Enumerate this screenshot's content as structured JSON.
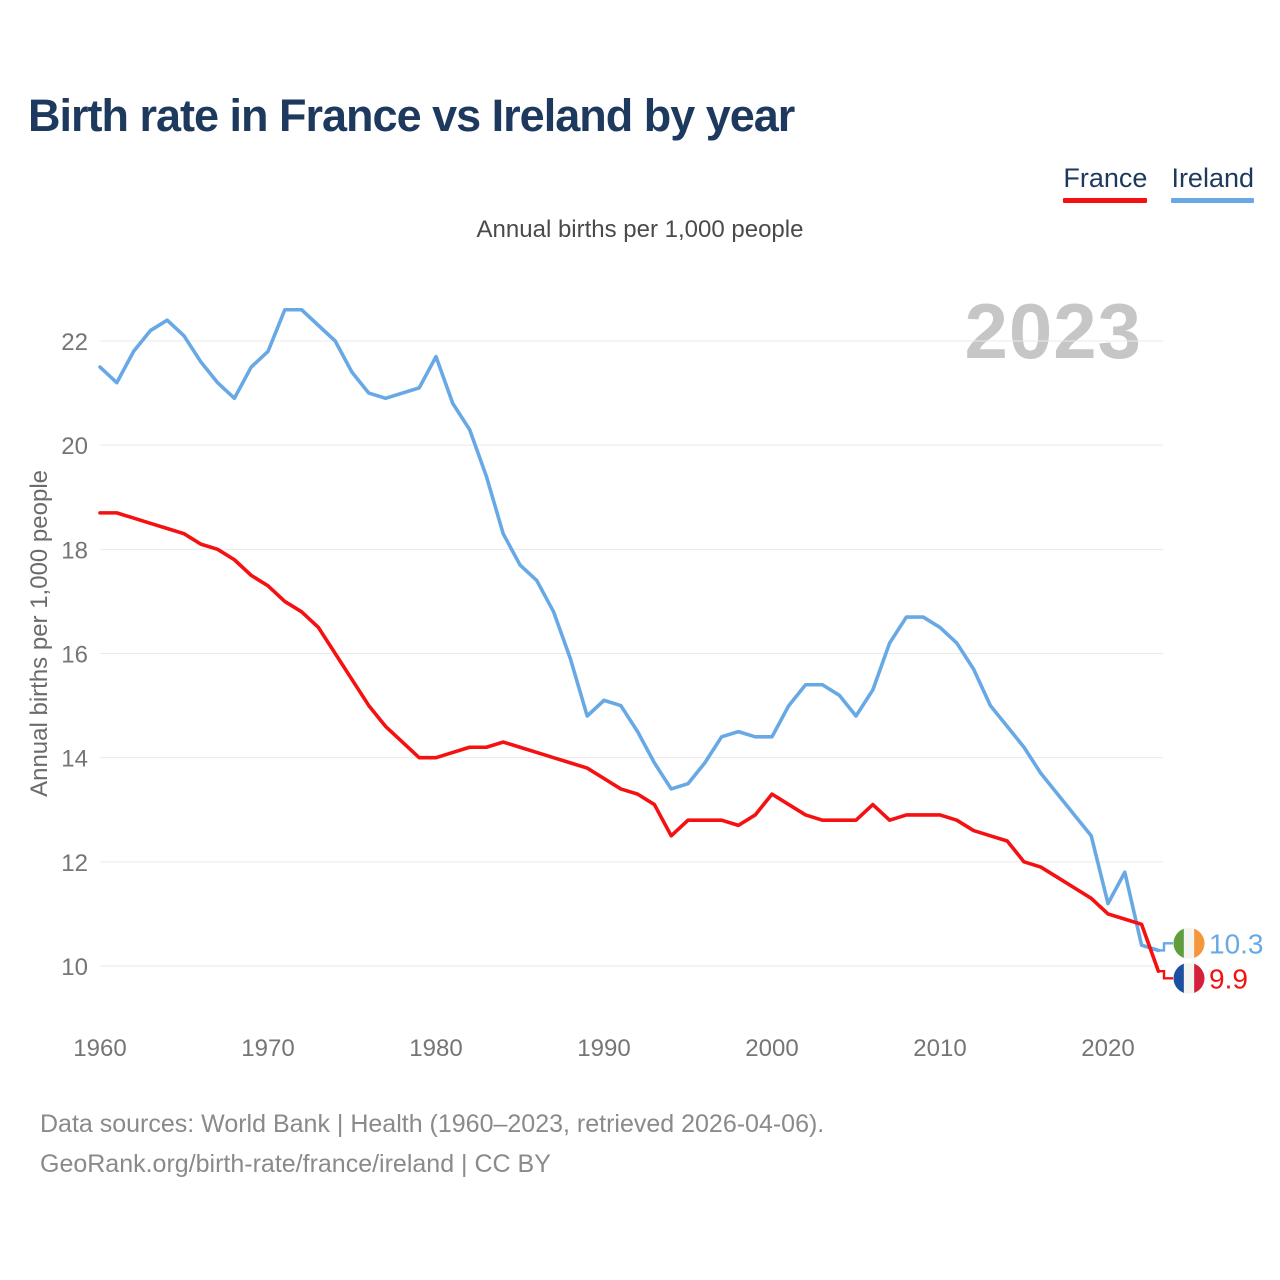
{
  "header": {
    "title": "Birth rate in France vs Ireland by year",
    "subtitle": "Annual births per 1,000 people"
  },
  "watermark": "2023",
  "y_axis_title": "Annual births per 1,000 people",
  "legend": {
    "position": "top-right",
    "items": [
      {
        "label": "France",
        "color": "#f51111"
      },
      {
        "label": "Ireland",
        "color": "#68a9e5"
      }
    ]
  },
  "footer": {
    "line1": "Data sources: World Bank | Health (1960–2023, retrieved 2026-04-06).",
    "line2": "GeoRank.org/birth-rate/france/ireland | CC BY"
  },
  "chart_data": {
    "type": "line",
    "title": "Birth rate in France vs Ireland by year",
    "ylabel": "Annual births per 1,000 people",
    "grid": "horizontal-only",
    "ylim": [
      9.5,
      23.2
    ],
    "y_ticks": [
      22,
      20,
      18,
      16,
      14,
      12,
      10
    ],
    "x_ticks": [
      1960,
      1970,
      1980,
      1990,
      2000,
      2010,
      2020
    ],
    "x": [
      1960,
      1961,
      1962,
      1963,
      1964,
      1965,
      1966,
      1967,
      1968,
      1969,
      1970,
      1971,
      1972,
      1973,
      1974,
      1975,
      1976,
      1977,
      1978,
      1979,
      1980,
      1981,
      1982,
      1983,
      1984,
      1985,
      1986,
      1987,
      1988,
      1989,
      1990,
      1991,
      1992,
      1993,
      1994,
      1995,
      1996,
      1997,
      1998,
      1999,
      2000,
      2001,
      2002,
      2003,
      2004,
      2005,
      2006,
      2007,
      2008,
      2009,
      2010,
      2011,
      2012,
      2013,
      2014,
      2015,
      2016,
      2017,
      2018,
      2019,
      2020,
      2021,
      2022,
      2023
    ],
    "series": [
      {
        "name": "France",
        "color": "#f51111",
        "end_label": "9.9",
        "flag_icon": "france-flag-icon",
        "flag_colors": [
          "#1d4fa1",
          "#f4f4f1",
          "#d5203b"
        ],
        "values": [
          18.7,
          18.7,
          18.6,
          18.5,
          18.4,
          18.3,
          18.1,
          18.0,
          17.8,
          17.5,
          17.3,
          17.0,
          16.8,
          16.5,
          16.0,
          15.5,
          15.0,
          14.6,
          14.3,
          14.0,
          14.0,
          14.1,
          14.2,
          14.2,
          14.3,
          14.2,
          14.1,
          14.0,
          13.9,
          13.8,
          13.6,
          13.4,
          13.3,
          13.1,
          12.5,
          12.8,
          12.8,
          12.8,
          12.7,
          12.9,
          13.3,
          13.1,
          12.9,
          12.8,
          12.8,
          12.8,
          13.1,
          12.8,
          12.9,
          12.9,
          12.9,
          12.8,
          12.6,
          12.5,
          12.4,
          12.0,
          11.9,
          11.7,
          11.5,
          11.3,
          11.0,
          10.9,
          10.8,
          9.9
        ]
      },
      {
        "name": "Ireland",
        "color": "#68a9e5",
        "end_label": "10.3",
        "flag_icon": "ireland-flag-icon",
        "flag_colors": [
          "#5f9e3e",
          "#f4f4f1",
          "#f5953c"
        ],
        "values": [
          21.5,
          21.2,
          21.8,
          22.2,
          22.4,
          22.1,
          21.6,
          21.2,
          20.9,
          21.5,
          21.8,
          22.6,
          22.6,
          22.3,
          22.0,
          21.4,
          21.0,
          20.9,
          21.0,
          21.1,
          21.7,
          20.8,
          20.3,
          19.4,
          18.3,
          17.7,
          17.4,
          16.8,
          15.9,
          14.8,
          15.1,
          15.0,
          14.5,
          13.9,
          13.4,
          13.5,
          13.9,
          14.4,
          14.5,
          14.4,
          14.4,
          15.0,
          15.4,
          15.4,
          15.2,
          14.8,
          15.3,
          16.2,
          16.7,
          16.7,
          16.5,
          16.2,
          15.7,
          15.0,
          14.6,
          14.2,
          13.7,
          13.3,
          12.9,
          12.5,
          11.2,
          11.8,
          10.4,
          10.3
        ]
      }
    ]
  }
}
